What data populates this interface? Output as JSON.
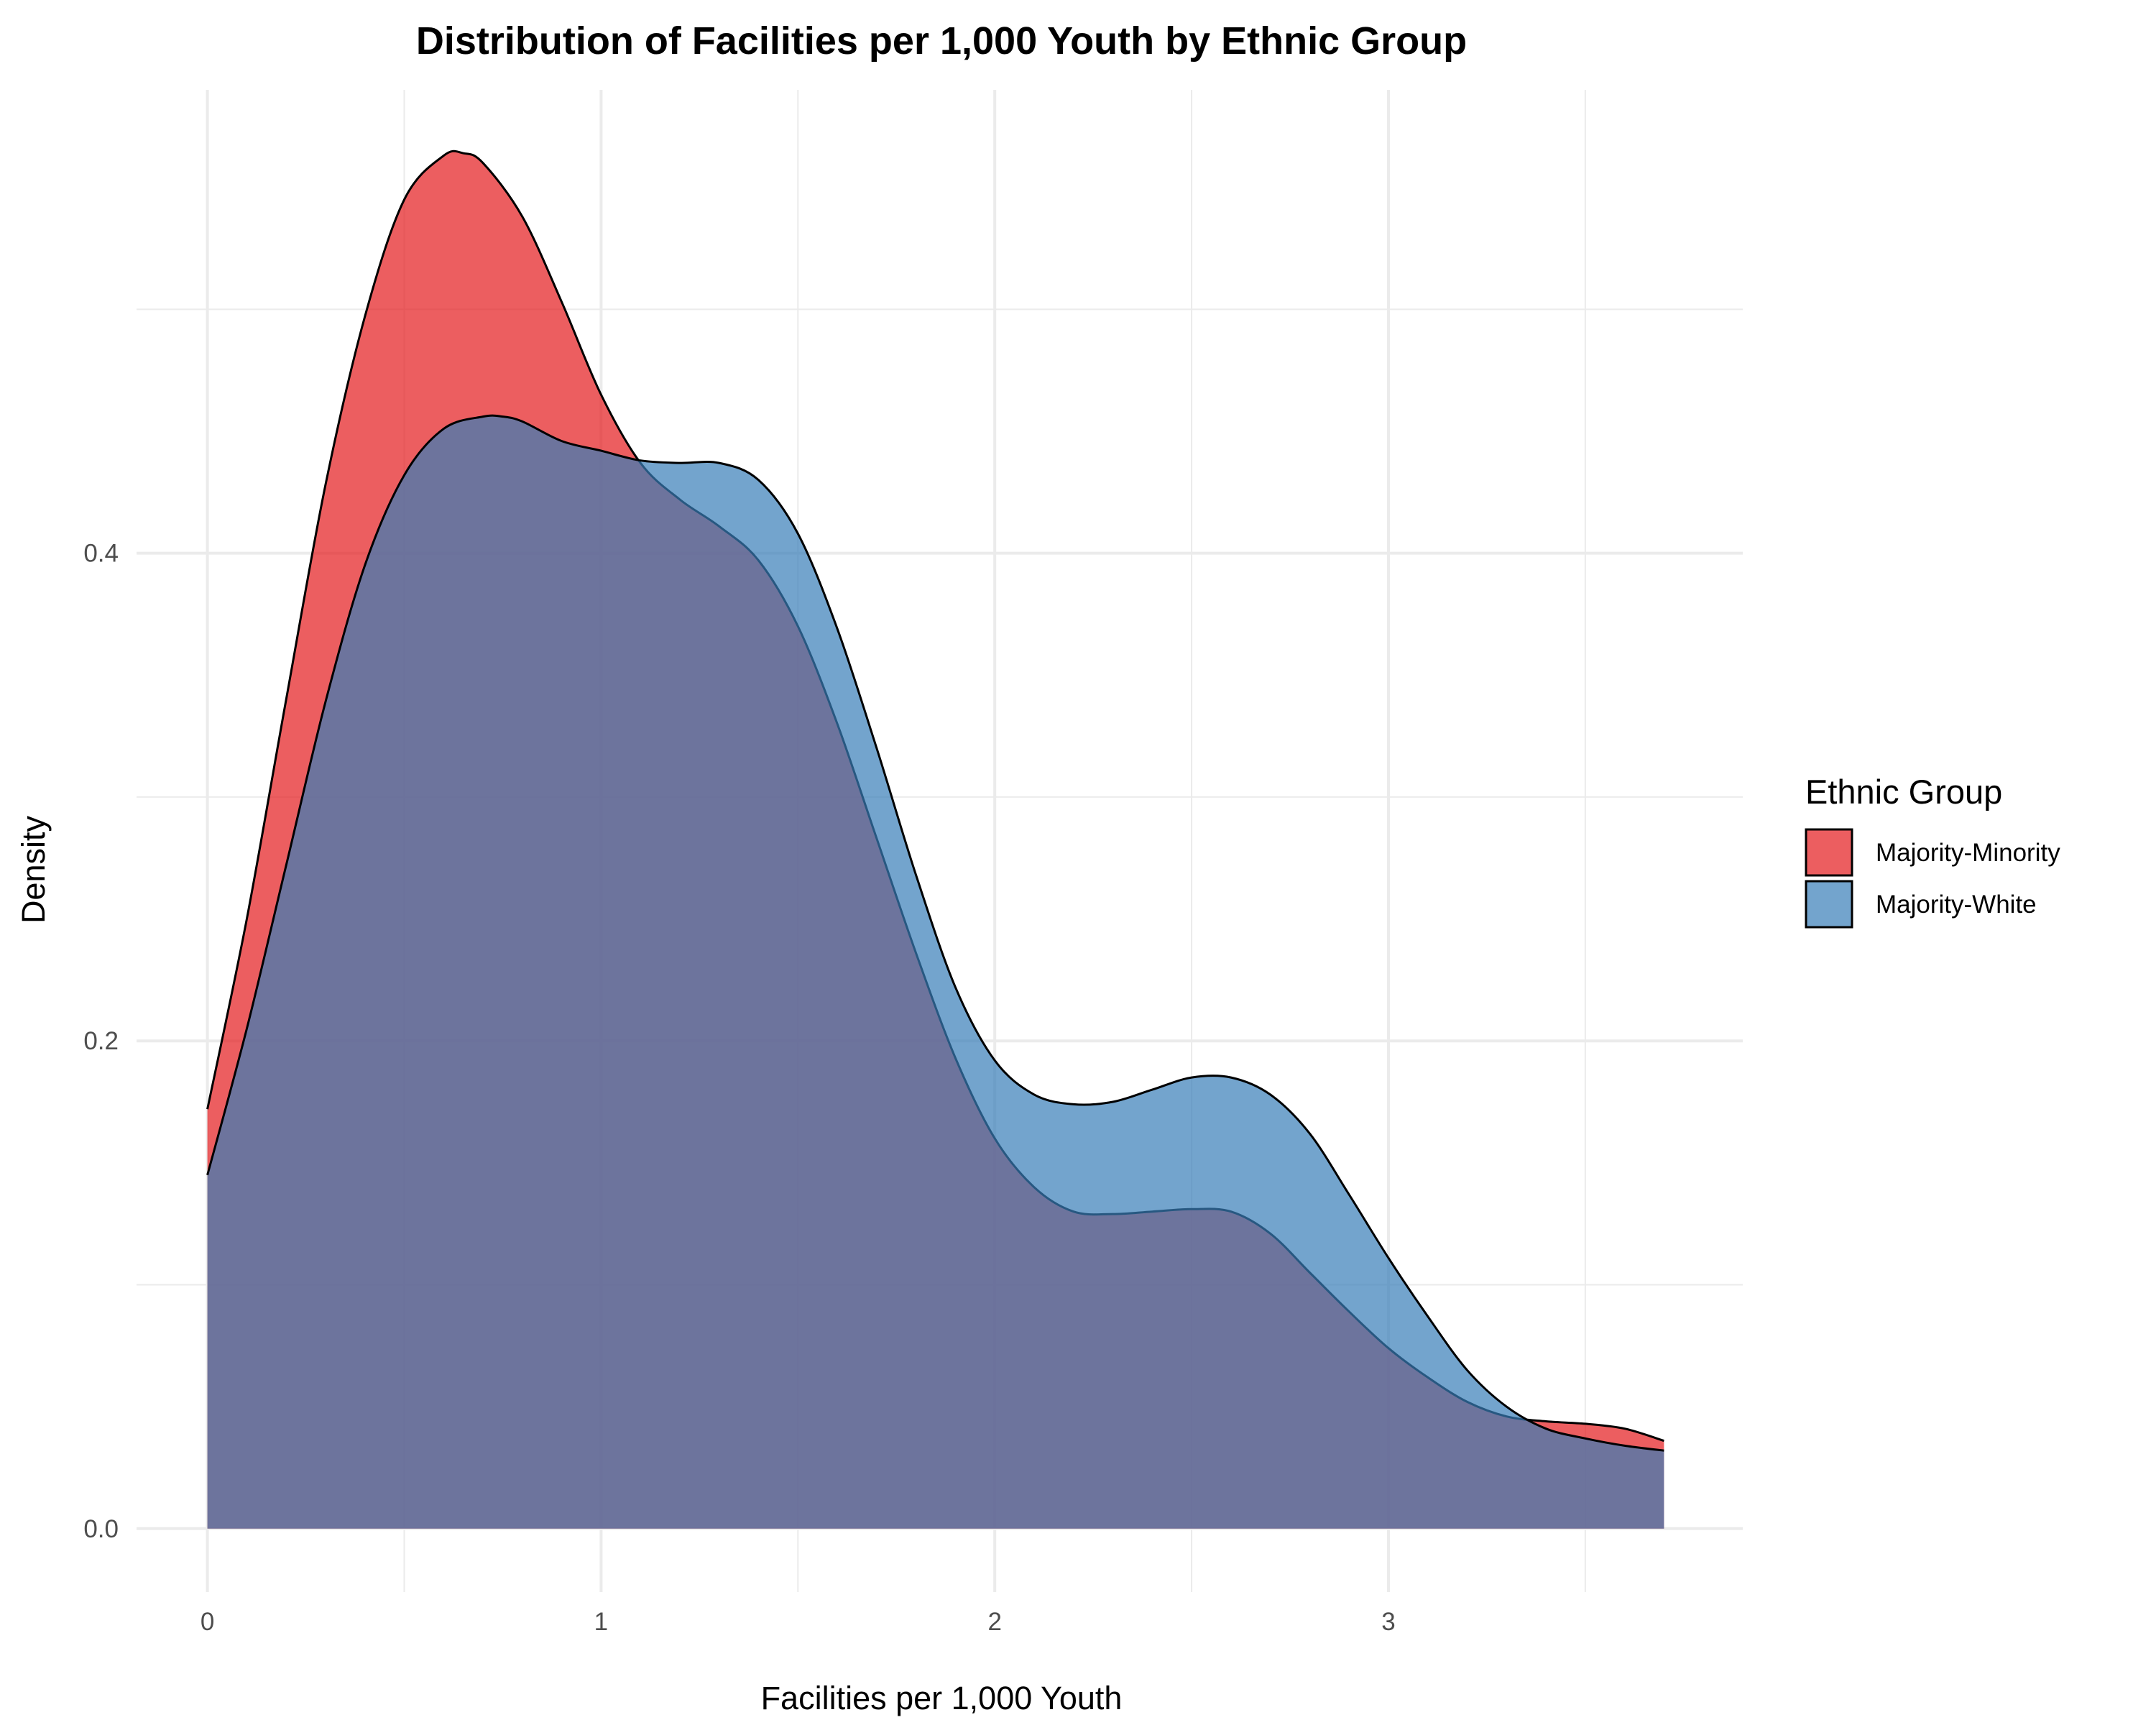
{
  "chart_data": {
    "type": "area",
    "subtype": "density",
    "title": "Distribution of Facilities per 1,000 Youth by Ethnic Group",
    "xlabel": "Facilities per 1,000 Youth",
    "ylabel": "Density",
    "xlim": [
      -0.18,
      3.9
    ],
    "ylim": [
      -0.026,
      0.59
    ],
    "x_ticks": [
      0,
      1,
      2,
      3
    ],
    "x_tick_labels": [
      "0",
      "1",
      "2",
      "3"
    ],
    "y_ticks": [
      0.0,
      0.2,
      0.4
    ],
    "y_tick_labels": [
      "0.0",
      "0.2",
      "0.4"
    ],
    "grid": true,
    "legend": {
      "title": "Ethnic Group",
      "position": "right"
    },
    "series": [
      {
        "name": "Majority-Minority",
        "color": "#E41A1C",
        "opacity": 0.7,
        "x": [
          0.0,
          0.1,
          0.2,
          0.3,
          0.4,
          0.5,
          0.6,
          0.65,
          0.7,
          0.8,
          0.9,
          1.0,
          1.1,
          1.2,
          1.3,
          1.4,
          1.5,
          1.6,
          1.7,
          1.8,
          1.9,
          2.0,
          2.1,
          2.2,
          2.3,
          2.4,
          2.5,
          2.6,
          2.7,
          2.8,
          2.9,
          3.0,
          3.1,
          3.2,
          3.3,
          3.4,
          3.5,
          3.6,
          3.7
        ],
        "y": [
          0.172,
          0.25,
          0.34,
          0.428,
          0.497,
          0.545,
          0.563,
          0.564,
          0.56,
          0.538,
          0.503,
          0.465,
          0.437,
          0.422,
          0.411,
          0.397,
          0.37,
          0.33,
          0.283,
          0.236,
          0.193,
          0.16,
          0.14,
          0.13,
          0.129,
          0.13,
          0.131,
          0.13,
          0.121,
          0.105,
          0.089,
          0.074,
          0.062,
          0.052,
          0.046,
          0.044,
          0.043,
          0.041,
          0.036
        ]
      },
      {
        "name": "Majority-White",
        "color": "#377EB8",
        "opacity": 0.7,
        "x": [
          0.0,
          0.1,
          0.2,
          0.3,
          0.4,
          0.5,
          0.6,
          0.7,
          0.75,
          0.8,
          0.9,
          1.0,
          1.1,
          1.2,
          1.3,
          1.4,
          1.5,
          1.6,
          1.7,
          1.8,
          1.9,
          2.0,
          2.1,
          2.2,
          2.3,
          2.4,
          2.5,
          2.6,
          2.7,
          2.8,
          2.9,
          3.0,
          3.1,
          3.2,
          3.3,
          3.4,
          3.5,
          3.6,
          3.7
        ],
        "y": [
          0.145,
          0.205,
          0.272,
          0.339,
          0.395,
          0.432,
          0.451,
          0.456,
          0.456,
          0.454,
          0.446,
          0.442,
          0.438,
          0.437,
          0.437,
          0.43,
          0.408,
          0.369,
          0.32,
          0.268,
          0.222,
          0.192,
          0.178,
          0.174,
          0.175,
          0.18,
          0.185,
          0.185,
          0.178,
          0.162,
          0.137,
          0.111,
          0.087,
          0.065,
          0.05,
          0.041,
          0.037,
          0.034,
          0.032
        ]
      }
    ]
  }
}
